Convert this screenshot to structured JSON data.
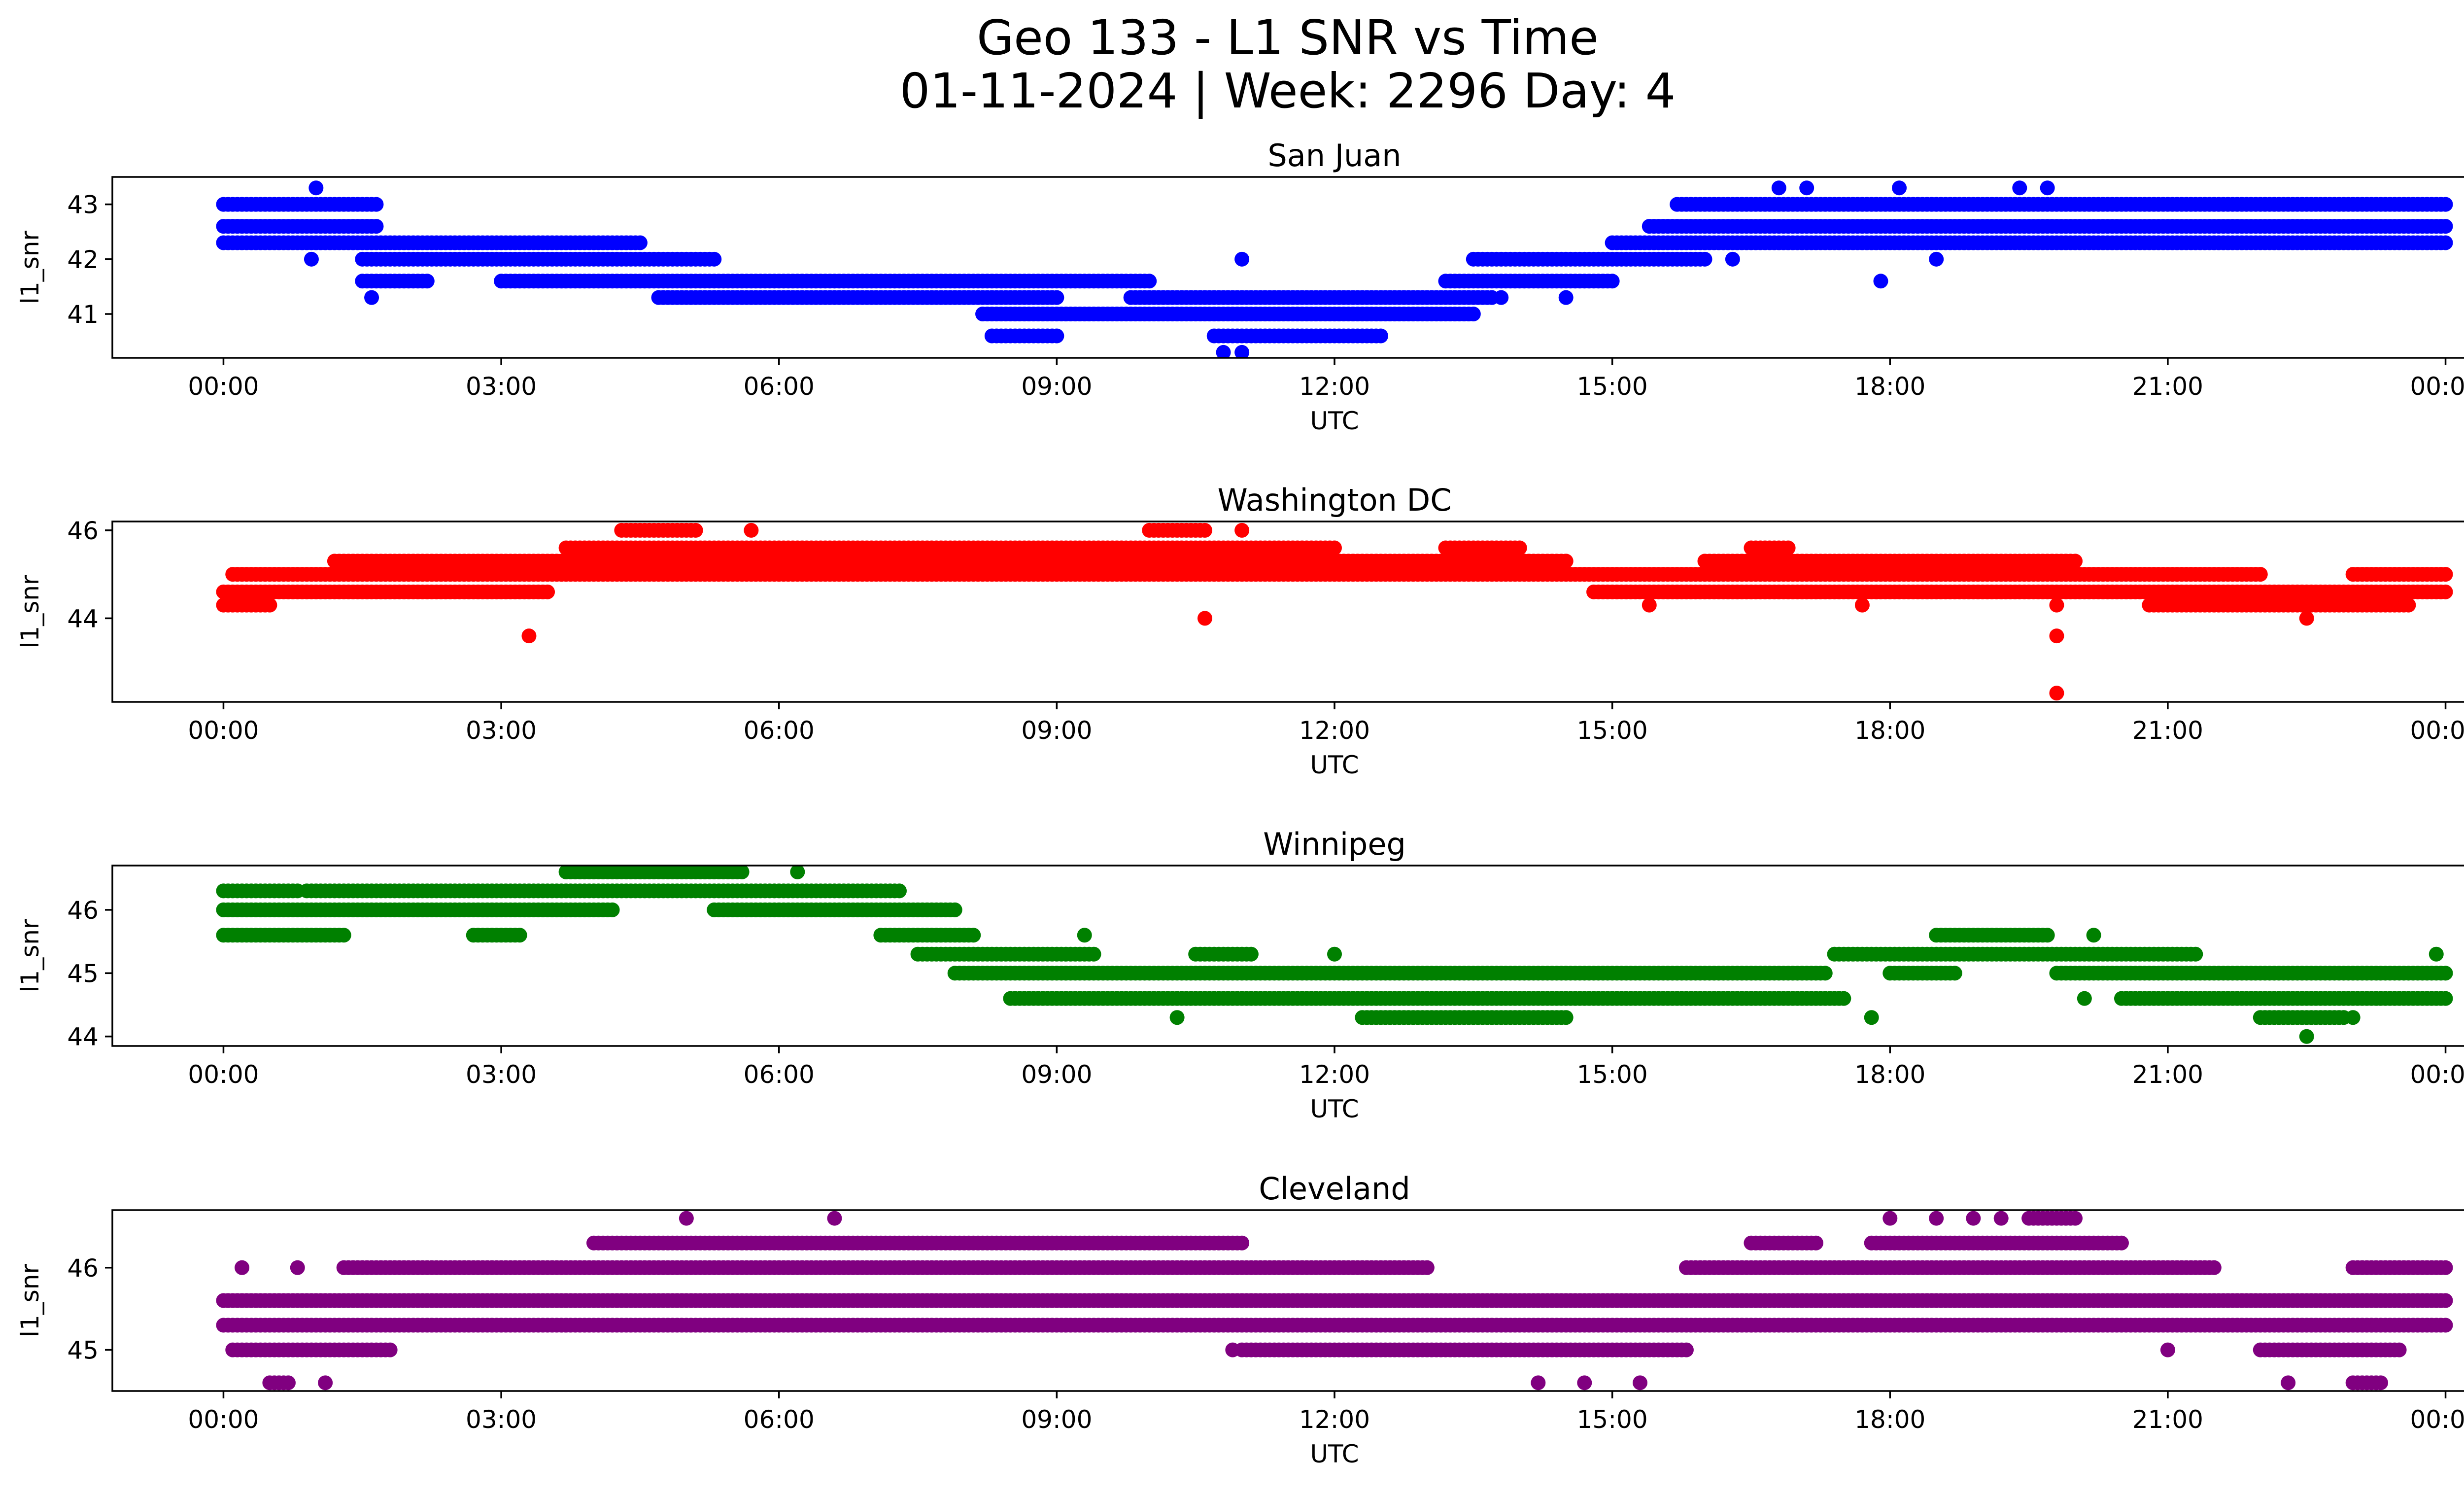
{
  "title_line1": "Geo 133 - L1 SNR vs Time",
  "title_line2": "01-11-2024 | Week: 2296 Day: 4",
  "colors": {
    "san_juan": "#0000ff",
    "washington": "#ff0000",
    "winnipeg": "#008000",
    "cleveland": "#800080"
  },
  "chart_data": [
    {
      "type": "scatter",
      "title": "San Juan",
      "xlabel": "UTC",
      "ylabel": "l1_snr",
      "color": "#0000ff",
      "x_ticks": [
        "00:00",
        "03:00",
        "06:00",
        "09:00",
        "12:00",
        "15:00",
        "18:00",
        "21:00",
        "00:00"
      ],
      "y_ticks": [
        41,
        42,
        43
      ],
      "xlim": [
        "2024-01-11T00:00",
        "2024-01-12T00:00"
      ],
      "ylim": [
        40.2,
        43.5
      ],
      "grid": false,
      "levels": [
        {
          "y": 43.0,
          "ranges": [
            [
              0.0,
              1.65
            ],
            [
              15.7,
              24.0
            ]
          ]
        },
        {
          "y": 42.6,
          "ranges": [
            [
              0.0,
              1.65
            ],
            [
              15.4,
              24.0
            ]
          ]
        },
        {
          "y": 42.3,
          "ranges": [
            [
              0.0,
              4.5
            ],
            [
              15.0,
              24.0
            ]
          ]
        },
        {
          "y": 42.0,
          "ranges": [
            [
              1.5,
              5.3
            ],
            [
              13.5,
              16.0
            ]
          ]
        },
        {
          "y": 41.6,
          "ranges": [
            [
              1.5,
              2.2
            ],
            [
              3.0,
              10.0
            ],
            [
              13.2,
              15.0
            ]
          ]
        },
        {
          "y": 41.3,
          "ranges": [
            [
              4.7,
              9.0
            ],
            [
              9.8,
              13.7
            ]
          ]
        },
        {
          "y": 41.0,
          "ranges": [
            [
              8.2,
              13.5
            ]
          ]
        },
        {
          "y": 40.6,
          "ranges": [
            [
              8.3,
              9.0
            ],
            [
              10.7,
              12.5
            ]
          ]
        }
      ],
      "outliers": [
        [
          1.0,
          43.3
        ],
        [
          16.8,
          43.3
        ],
        [
          17.1,
          43.3
        ],
        [
          18.1,
          43.3
        ],
        [
          19.4,
          43.3
        ],
        [
          19.7,
          43.3
        ],
        [
          0.95,
          42.0
        ],
        [
          16.3,
          42.0
        ],
        [
          18.5,
          42.0
        ],
        [
          11.0,
          42.0
        ],
        [
          1.6,
          41.3
        ],
        [
          17.9,
          41.6
        ],
        [
          13.8,
          41.3
        ],
        [
          14.5,
          41.3
        ],
        [
          11.0,
          40.3
        ],
        [
          10.8,
          40.3
        ]
      ]
    },
    {
      "type": "scatter",
      "title": "Washington DC",
      "xlabel": "UTC",
      "ylabel": "l1_snr",
      "color": "#ff0000",
      "x_ticks": [
        "00:00",
        "03:00",
        "06:00",
        "09:00",
        "12:00",
        "15:00",
        "18:00",
        "21:00",
        "00:00"
      ],
      "y_ticks": [
        44,
        46
      ],
      "xlim": [
        "2024-01-11T00:00",
        "2024-01-12T00:00"
      ],
      "ylim": [
        42.1,
        46.2
      ],
      "grid": false,
      "levels": [
        {
          "y": 46.0,
          "ranges": [
            [
              4.3,
              5.1
            ],
            [
              10.0,
              10.6
            ]
          ]
        },
        {
          "y": 45.6,
          "ranges": [
            [
              3.7,
              12.0
            ],
            [
              13.2,
              14.0
            ],
            [
              16.5,
              16.9
            ]
          ]
        },
        {
          "y": 45.3,
          "ranges": [
            [
              1.2,
              14.5
            ],
            [
              16.0,
              20.0
            ]
          ]
        },
        {
          "y": 45.0,
          "ranges": [
            [
              0.1,
              22.0
            ],
            [
              23.0,
              24.0
            ]
          ]
        },
        {
          "y": 44.6,
          "ranges": [
            [
              0.0,
              3.5
            ],
            [
              14.8,
              24.0
            ]
          ]
        },
        {
          "y": 44.3,
          "ranges": [
            [
              0.0,
              0.5
            ],
            [
              20.8,
              23.6
            ]
          ]
        }
      ],
      "outliers": [
        [
          3.3,
          43.6
        ],
        [
          10.6,
          44.0
        ],
        [
          19.8,
          43.6
        ],
        [
          19.8,
          42.3
        ],
        [
          19.8,
          44.3
        ],
        [
          22.5,
          44.0
        ],
        [
          15.4,
          44.3
        ],
        [
          17.7,
          44.3
        ],
        [
          11.0,
          46.0
        ],
        [
          5.7,
          46.0
        ]
      ]
    },
    {
      "type": "scatter",
      "title": "Winnipeg",
      "xlabel": "UTC",
      "ylabel": "l1_snr",
      "color": "#008000",
      "x_ticks": [
        "00:00",
        "03:00",
        "06:00",
        "09:00",
        "12:00",
        "15:00",
        "18:00",
        "21:00",
        "00:00"
      ],
      "y_ticks": [
        44,
        45,
        46
      ],
      "xlim": [
        "2024-01-11T00:00",
        "2024-01-12T00:00"
      ],
      "ylim": [
        43.85,
        46.7
      ],
      "grid": false,
      "levels": [
        {
          "y": 46.6,
          "ranges": [
            [
              3.7,
              5.6
            ]
          ]
        },
        {
          "y": 46.3,
          "ranges": [
            [
              0.0,
              0.8
            ],
            [
              0.9,
              7.3
            ]
          ]
        },
        {
          "y": 46.0,
          "ranges": [
            [
              0.0,
              4.2
            ],
            [
              5.3,
              7.9
            ]
          ]
        },
        {
          "y": 45.6,
          "ranges": [
            [
              0.0,
              1.3
            ],
            [
              2.7,
              3.2
            ],
            [
              7.1,
              8.1
            ],
            [
              18.5,
              19.7
            ]
          ]
        },
        {
          "y": 45.3,
          "ranges": [
            [
              7.5,
              9.4
            ],
            [
              10.5,
              11.1
            ],
            [
              17.4,
              21.3
            ]
          ]
        },
        {
          "y": 45.0,
          "ranges": [
            [
              7.9,
              17.3
            ],
            [
              18.0,
              18.7
            ],
            [
              19.8,
              24.0
            ]
          ]
        },
        {
          "y": 44.6,
          "ranges": [
            [
              8.5,
              17.5
            ],
            [
              20.5,
              24.0
            ]
          ]
        },
        {
          "y": 44.3,
          "ranges": [
            [
              12.3,
              14.5
            ],
            [
              22.0,
              22.9
            ]
          ]
        }
      ],
      "outliers": [
        [
          6.2,
          46.6
        ],
        [
          9.3,
          45.6
        ],
        [
          12.0,
          45.3
        ],
        [
          10.3,
          44.3
        ],
        [
          17.8,
          44.3
        ],
        [
          22.5,
          44.0
        ],
        [
          20.1,
          44.6
        ],
        [
          20.2,
          45.6
        ],
        [
          23.9,
          45.3
        ],
        [
          23.0,
          44.3
        ]
      ]
    },
    {
      "type": "scatter",
      "title": "Cleveland",
      "xlabel": "UTC",
      "ylabel": "l1_snr",
      "color": "#800080",
      "x_ticks": [
        "00:00",
        "03:00",
        "06:00",
        "09:00",
        "12:00",
        "15:00",
        "18:00",
        "21:00",
        "00:00"
      ],
      "y_ticks": [
        45,
        46
      ],
      "xlim": [
        "2024-01-11T00:00",
        "2024-01-12T00:00"
      ],
      "ylim": [
        44.5,
        46.7
      ],
      "grid": false,
      "levels": [
        {
          "y": 46.6,
          "ranges": [
            [
              19.5,
              20.0
            ]
          ]
        },
        {
          "y": 46.3,
          "ranges": [
            [
              4.0,
              11.0
            ],
            [
              16.5,
              17.2
            ],
            [
              17.8,
              20.5
            ]
          ]
        },
        {
          "y": 46.0,
          "ranges": [
            [
              1.3,
              13.0
            ],
            [
              15.8,
              21.5
            ],
            [
              23.0,
              24.0
            ]
          ]
        },
        {
          "y": 45.6,
          "ranges": [
            [
              0.0,
              24.0
            ]
          ]
        },
        {
          "y": 45.3,
          "ranges": [
            [
              0.0,
              24.0
            ]
          ]
        },
        {
          "y": 45.0,
          "ranges": [
            [
              0.1,
              1.8
            ],
            [
              11.0,
              15.8
            ],
            [
              22.0,
              23.5
            ]
          ]
        },
        {
          "y": 44.6,
          "ranges": [
            [
              0.5,
              0.7
            ],
            [
              23.0,
              23.3
            ]
          ]
        }
      ],
      "outliers": [
        [
          5.0,
          46.6
        ],
        [
          6.6,
          46.6
        ],
        [
          18.0,
          46.6
        ],
        [
          18.5,
          46.6
        ],
        [
          18.9,
          46.6
        ],
        [
          19.2,
          46.6
        ],
        [
          0.2,
          46.0
        ],
        [
          0.8,
          46.0
        ],
        [
          1.1,
          44.6
        ],
        [
          10.9,
          45.0
        ],
        [
          14.2,
          44.6
        ],
        [
          14.7,
          44.6
        ],
        [
          15.3,
          44.6
        ],
        [
          21.0,
          45.0
        ],
        [
          22.3,
          44.6
        ]
      ]
    }
  ]
}
